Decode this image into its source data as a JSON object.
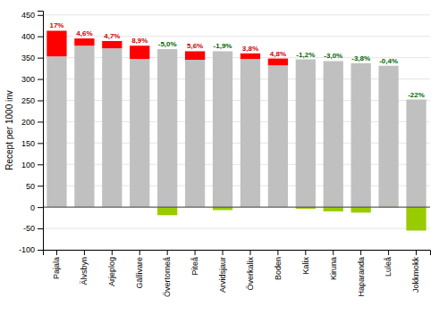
{
  "chart_data": {
    "type": "bar",
    "stacked": true,
    "grid": true,
    "y_label": "Recept per 1000 inv",
    "categories": [
      "Pajala",
      "Älvsbyn",
      "Arjeplog",
      "Gällivare",
      "Övertorneå",
      "Piteå",
      "Arvidsjaur",
      "Överkalix",
      "Boden",
      "Kalix",
      "Kiruna",
      "Haparanda",
      "Luleå",
      "Jokkmokk"
    ],
    "series": [
      {
        "color": "#c0c0c0",
        "values": [
          353,
          378,
          372,
          347,
          370,
          345,
          365,
          347,
          332,
          346,
          342,
          337,
          331,
          252
        ]
      },
      {
        "colors": [
          "#ff0000",
          "#ff0000",
          "#ff0000",
          "#ff0000",
          "#99cc00",
          "#ff0000",
          "#99cc00",
          "#ff0000",
          "#ff0000",
          "#99cc00",
          "#99cc00",
          "#99cc00",
          "#99cc00",
          "#99cc00"
        ],
        "values": [
          60,
          17,
          17,
          31,
          -19,
          20,
          -7,
          13,
          16,
          -4,
          -10,
          -13,
          -1,
          -55
        ]
      }
    ],
    "annotations": [
      {
        "text": "17%",
        "color": "#cc0000"
      },
      {
        "text": "4,6%",
        "color": "#cc0000"
      },
      {
        "text": "4,7%",
        "color": "#cc0000"
      },
      {
        "text": "8,9%",
        "color": "#cc0000"
      },
      {
        "text": "-5,0%",
        "color": "#006600"
      },
      {
        "text": "5,6%",
        "color": "#cc0000"
      },
      {
        "text": "-1,9%",
        "color": "#006600"
      },
      {
        "text": "3,8%",
        "color": "#cc0000"
      },
      {
        "text": "4,8%",
        "color": "#cc0000"
      },
      {
        "text": "-1,2%",
        "color": "#006600"
      },
      {
        "text": "-3,0%",
        "color": "#006600"
      },
      {
        "text": "-3,8%",
        "color": "#006600"
      },
      {
        "text": "-0,4%",
        "color": "#006600"
      },
      {
        "text": "-22%",
        "color": "#006600"
      }
    ],
    "ylim": [
      -100,
      460
    ],
    "yticks": [
      -100,
      -50,
      0,
      50,
      100,
      150,
      200,
      250,
      300,
      350,
      400,
      450
    ]
  }
}
